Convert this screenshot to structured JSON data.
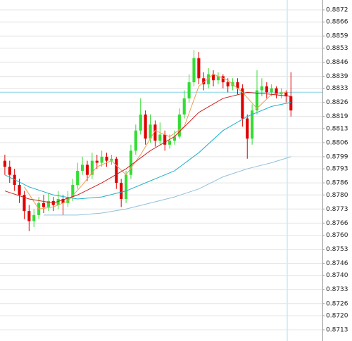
{
  "chart_data": {
    "type": "candlestick",
    "open": [
      0.8797,
      0.8794,
      0.879,
      0.8785,
      0.878,
      0.8772,
      0.8767,
      0.877,
      0.8776,
      0.8774,
      0.8777,
      0.8775,
      0.8778,
      0.8776,
      0.8779,
      0.8785,
      0.8792,
      0.8795,
      0.879,
      0.8797,
      0.8796,
      0.8799,
      0.8797,
      0.8798,
      0.8786,
      0.8778,
      0.879,
      0.8802,
      0.8812,
      0.882,
      0.8808,
      0.8815,
      0.8807,
      0.881,
      0.8805,
      0.8807,
      0.8809,
      0.882,
      0.8828,
      0.8836,
      0.8848,
      0.8838,
      0.8835,
      0.884,
      0.8837,
      0.8839,
      0.8836,
      0.8834,
      0.8836,
      0.8833,
      0.8818,
      0.8808,
      0.8822,
      0.8832,
      0.8834,
      0.8831,
      0.8833,
      0.883,
      0.8831,
      0.8829
    ],
    "high": [
      0.88,
      0.8797,
      0.8793,
      0.8788,
      0.8782,
      0.8775,
      0.8773,
      0.8779,
      0.878,
      0.8781,
      0.8779,
      0.8782,
      0.878,
      0.8782,
      0.8788,
      0.8796,
      0.8799,
      0.8797,
      0.8801,
      0.88,
      0.8802,
      0.8801,
      0.88,
      0.8799,
      0.8788,
      0.8792,
      0.8805,
      0.8815,
      0.8828,
      0.8822,
      0.882,
      0.8817,
      0.8816,
      0.8812,
      0.881,
      0.8812,
      0.8823,
      0.8832,
      0.884,
      0.8852,
      0.8851,
      0.8841,
      0.8843,
      0.8842,
      0.8841,
      0.884,
      0.8838,
      0.8838,
      0.8838,
      0.8835,
      0.882,
      0.8825,
      0.8842,
      0.8838,
      0.8836,
      0.8835,
      0.8834,
      0.8833,
      0.8832,
      0.8841
    ],
    "low": [
      0.879,
      0.8786,
      0.8782,
      0.8776,
      0.8768,
      0.8762,
      0.8764,
      0.8768,
      0.8771,
      0.8772,
      0.8772,
      0.8773,
      0.877,
      0.8774,
      0.8777,
      0.8783,
      0.879,
      0.8787,
      0.8788,
      0.8793,
      0.8794,
      0.8794,
      0.8795,
      0.8783,
      0.8774,
      0.8776,
      0.8788,
      0.88,
      0.881,
      0.8805,
      0.8806,
      0.8804,
      0.8805,
      0.8802,
      0.8803,
      0.8805,
      0.8808,
      0.8818,
      0.8826,
      0.8834,
      0.8835,
      0.8832,
      0.8833,
      0.8834,
      0.8835,
      0.8833,
      0.8831,
      0.8832,
      0.883,
      0.8814,
      0.8798,
      0.8805,
      0.882,
      0.8829,
      0.8828,
      0.8829,
      0.8828,
      0.8828,
      0.8826,
      0.8819
    ],
    "close": [
      0.8794,
      0.879,
      0.8785,
      0.878,
      0.8772,
      0.8767,
      0.877,
      0.8776,
      0.8774,
      0.8777,
      0.8775,
      0.8778,
      0.8776,
      0.8779,
      0.8785,
      0.8792,
      0.8795,
      0.879,
      0.8797,
      0.8796,
      0.8799,
      0.8797,
      0.8798,
      0.8786,
      0.8778,
      0.879,
      0.8802,
      0.8812,
      0.882,
      0.8808,
      0.8815,
      0.8807,
      0.881,
      0.8805,
      0.8807,
      0.8809,
      0.882,
      0.8828,
      0.8836,
      0.8848,
      0.8838,
      0.8835,
      0.884,
      0.8837,
      0.8839,
      0.8836,
      0.8834,
      0.8836,
      0.8833,
      0.8818,
      0.8808,
      0.8822,
      0.8832,
      0.8834,
      0.8831,
      0.8833,
      0.883,
      0.8831,
      0.8829,
      0.8822
    ],
    "up_color": "#33dd33",
    "down_color": "#e00000",
    "overlays": [
      {
        "color": "#f0a050",
        "x": [
          4,
          7,
          10,
          13,
          16,
          19,
          22,
          25,
          28,
          31,
          34,
          37,
          40,
          43,
          46,
          49,
          52,
          55,
          58
        ],
        "values": [
          0.8784,
          0.8773,
          0.8774,
          0.8777,
          0.8785,
          0.8794,
          0.8797,
          0.879,
          0.88,
          0.8812,
          0.8809,
          0.8814,
          0.8834,
          0.884,
          0.8837,
          0.8831,
          0.8823,
          0.883,
          0.8831
        ]
      },
      {
        "color": "#cc2222",
        "x": [
          0,
          5,
          10,
          15,
          20,
          25,
          30,
          35,
          40,
          45,
          50,
          55,
          59
        ],
        "values": [
          0.8782,
          0.8778,
          0.8776,
          0.878,
          0.8786,
          0.8793,
          0.8802,
          0.8809,
          0.8821,
          0.8828,
          0.8831,
          0.883,
          0.8829
        ]
      },
      {
        "color": "#22b0c8",
        "x": [
          0,
          5,
          10,
          15,
          20,
          25,
          30,
          35,
          40,
          45,
          50,
          55,
          59
        ],
        "values": [
          0.879,
          0.8784,
          0.878,
          0.8778,
          0.8779,
          0.8782,
          0.8787,
          0.8792,
          0.8801,
          0.8812,
          0.8819,
          0.8824,
          0.8826
        ]
      },
      {
        "color": "#8fc0dc",
        "x": [
          8,
          15,
          20,
          25,
          30,
          35,
          40,
          45,
          50,
          55,
          59
        ],
        "values": [
          0.877,
          0.877,
          0.8771,
          0.8773,
          0.8776,
          0.8779,
          0.8783,
          0.8789,
          0.8793,
          0.8796,
          0.8799
        ]
      }
    ],
    "price_line": 0.8831,
    "xlim": [
      -1,
      65.5
    ],
    "ylim": [
      0.87074,
      0.88769
    ],
    "yticks": [
      0.8872,
      0.8866,
      0.8859,
      0.8853,
      0.8846,
      0.8839,
      0.8833,
      0.8826,
      0.8819,
      0.8813,
      0.8806,
      0.8799,
      0.8793,
      0.8786,
      {
        "value": 0.878,
        "label": "0.8780"
      },
      0.8773,
      0.8766,
      {
        "value": 0.876,
        "label": "0.8760"
      },
      0.8753,
      0.8746,
      {
        "value": 0.874,
        "label": "0.8740"
      },
      0.8733,
      0.8726,
      {
        "value": 0.872,
        "label": "0.8720"
      },
      0.8713
    ],
    "grid": true
  }
}
